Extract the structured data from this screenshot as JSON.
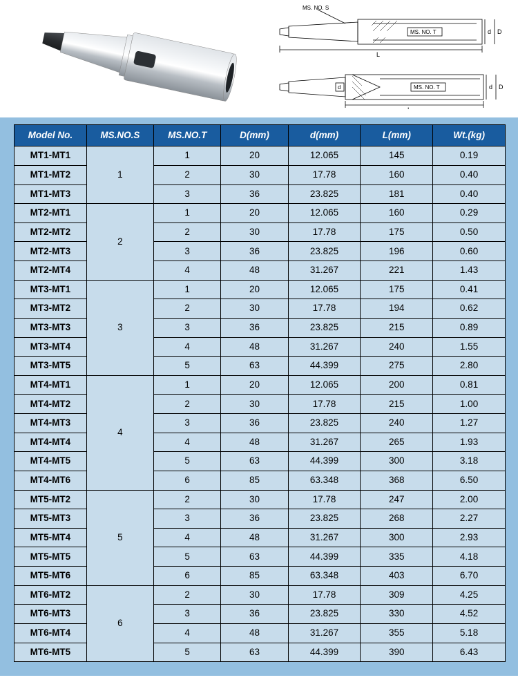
{
  "diagram_labels": {
    "ms_no_s": "MS. NO. S",
    "ms_no_t": "MS. NO. T",
    "L": "L",
    "D": "D",
    "d": "d"
  },
  "table": {
    "columns": [
      "Model No.",
      "MS.NO.S",
      "MS.NO.T",
      "D(mm)",
      "d(mm)",
      "L(mm)",
      "Wt.(kg)"
    ],
    "header_bg": "#195c9f",
    "header_color": "#ffffff",
    "cell_bg": "#c7dceb",
    "wrapper_bg": "#93bfe0",
    "border_color": "#000000",
    "groups": [
      {
        "s": "1",
        "rows": [
          {
            "model": "MT1-MT1",
            "t": "1",
            "D": "20",
            "d": "12.065",
            "L": "145",
            "wt": "0.19"
          },
          {
            "model": "MT1-MT2",
            "t": "2",
            "D": "30",
            "d": "17.78",
            "L": "160",
            "wt": "0.40"
          },
          {
            "model": "MT1-MT3",
            "t": "3",
            "D": "36",
            "d": "23.825",
            "L": "181",
            "wt": "0.40"
          }
        ]
      },
      {
        "s": "2",
        "rows": [
          {
            "model": "MT2-MT1",
            "t": "1",
            "D": "20",
            "d": "12.065",
            "L": "160",
            "wt": "0.29"
          },
          {
            "model": "MT2-MT2",
            "t": "2",
            "D": "30",
            "d": "17.78",
            "L": "175",
            "wt": "0.50"
          },
          {
            "model": "MT2-MT3",
            "t": "3",
            "D": "36",
            "d": "23.825",
            "L": "196",
            "wt": "0.60"
          },
          {
            "model": "MT2-MT4",
            "t": "4",
            "D": "48",
            "d": "31.267",
            "L": "221",
            "wt": "1.43"
          }
        ]
      },
      {
        "s": "3",
        "rows": [
          {
            "model": "MT3-MT1",
            "t": "1",
            "D": "20",
            "d": "12.065",
            "L": "175",
            "wt": "0.41"
          },
          {
            "model": "MT3-MT2",
            "t": "2",
            "D": "30",
            "d": "17.78",
            "L": "194",
            "wt": "0.62"
          },
          {
            "model": "MT3-MT3",
            "t": "3",
            "D": "36",
            "d": "23.825",
            "L": "215",
            "wt": "0.89"
          },
          {
            "model": "MT3-MT4",
            "t": "4",
            "D": "48",
            "d": "31.267",
            "L": "240",
            "wt": "1.55"
          },
          {
            "model": "MT3-MT5",
            "t": "5",
            "D": "63",
            "d": "44.399",
            "L": "275",
            "wt": "2.80"
          }
        ]
      },
      {
        "s": "4",
        "rows": [
          {
            "model": "MT4-MT1",
            "t": "1",
            "D": "20",
            "d": "12.065",
            "L": "200",
            "wt": "0.81"
          },
          {
            "model": "MT4-MT2",
            "t": "2",
            "D": "30",
            "d": "17.78",
            "L": "215",
            "wt": "1.00"
          },
          {
            "model": "MT4-MT3",
            "t": "3",
            "D": "36",
            "d": "23.825",
            "L": "240",
            "wt": "1.27"
          },
          {
            "model": "MT4-MT4",
            "t": "4",
            "D": "48",
            "d": "31.267",
            "L": "265",
            "wt": "1.93"
          },
          {
            "model": "MT4-MT5",
            "t": "5",
            "D": "63",
            "d": "44.399",
            "L": "300",
            "wt": "3.18"
          },
          {
            "model": "MT4-MT6",
            "t": "6",
            "D": "85",
            "d": "63.348",
            "L": "368",
            "wt": "6.50"
          }
        ]
      },
      {
        "s": "5",
        "rows": [
          {
            "model": "MT5-MT2",
            "t": "2",
            "D": "30",
            "d": "17.78",
            "L": "247",
            "wt": "2.00"
          },
          {
            "model": "MT5-MT3",
            "t": "3",
            "D": "36",
            "d": "23.825",
            "L": "268",
            "wt": "2.27"
          },
          {
            "model": "MT5-MT4",
            "t": "4",
            "D": "48",
            "d": "31.267",
            "L": "300",
            "wt": "2.93"
          },
          {
            "model": "MT5-MT5",
            "t": "5",
            "D": "63",
            "d": "44.399",
            "L": "335",
            "wt": "4.18"
          },
          {
            "model": "MT5-MT6",
            "t": "6",
            "D": "85",
            "d": "63.348",
            "L": "403",
            "wt": "6.70"
          }
        ]
      },
      {
        "s": "6",
        "rows": [
          {
            "model": "MT6-MT2",
            "t": "2",
            "D": "30",
            "d": "17.78",
            "L": "309",
            "wt": "4.25"
          },
          {
            "model": "MT6-MT3",
            "t": "3",
            "D": "36",
            "d": "23.825",
            "L": "330",
            "wt": "4.52"
          },
          {
            "model": "MT6-MT4",
            "t": "4",
            "D": "48",
            "d": "31.267",
            "L": "355",
            "wt": "5.18"
          },
          {
            "model": "MT6-MT5",
            "t": "5",
            "D": "63",
            "d": "44.399",
            "L": "390",
            "wt": "6.43"
          }
        ]
      }
    ]
  }
}
